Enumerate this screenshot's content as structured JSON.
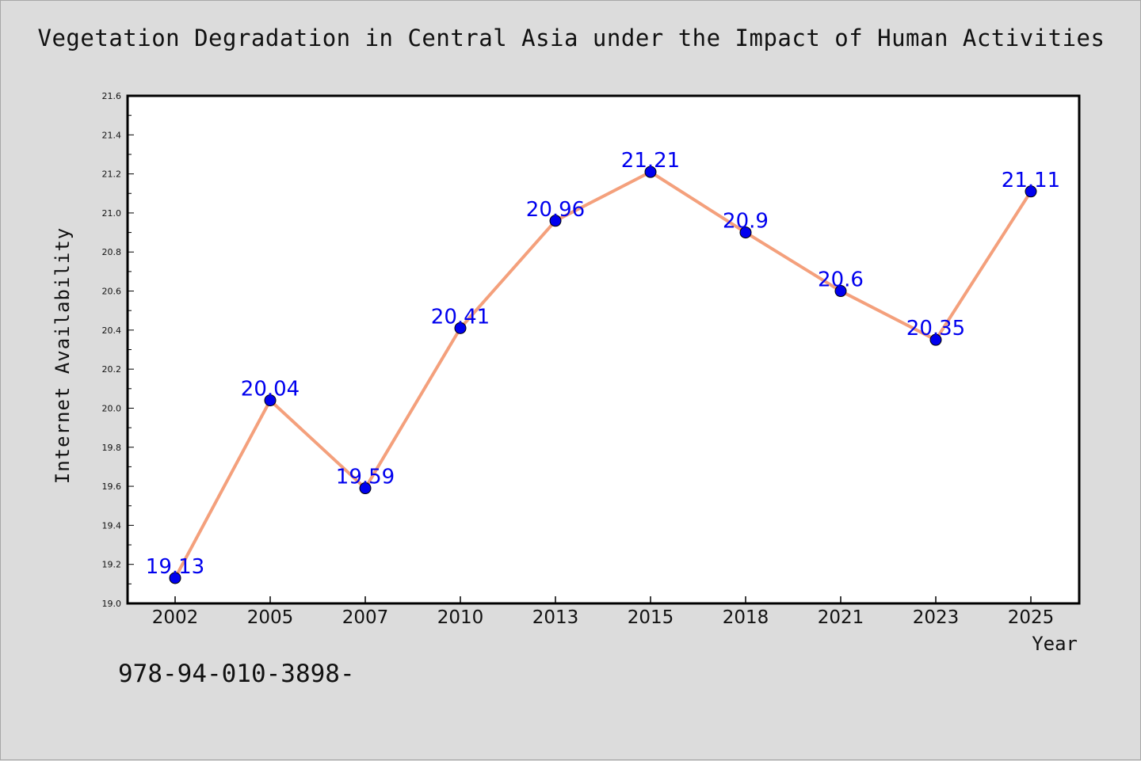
{
  "chart_data": {
    "type": "line",
    "title": "Vegetation Degradation in Central Asia under the Impact of Human Activities",
    "xlabel": "Year",
    "ylabel": "Internet Availability",
    "categories": [
      "2002",
      "2005",
      "2007",
      "2010",
      "2013",
      "2015",
      "2018",
      "2021",
      "2023",
      "2025"
    ],
    "values": [
      19.13,
      20.04,
      19.59,
      20.41,
      20.96,
      21.21,
      20.9,
      20.6,
      20.35,
      21.11
    ],
    "data_labels": [
      "19.13",
      "20.04",
      "19.59",
      "20.41",
      "20.96",
      "21.21",
      "20.9",
      "20.6",
      "20.35",
      "21.11"
    ],
    "ylim": [
      19.0,
      21.6
    ],
    "y_ticks": [
      "19.0",
      "19.2",
      "19.4",
      "19.6",
      "19.8",
      "20.0",
      "20.2",
      "20.4",
      "20.6",
      "20.8",
      "21.0",
      "21.2",
      "21.4",
      "21.6"
    ],
    "grid": false,
    "legend": "none",
    "line_color": "#f4a07c",
    "marker_color": "#0000ee",
    "label_color": "#0000ee"
  },
  "footnote": "978-94-010-3898-"
}
